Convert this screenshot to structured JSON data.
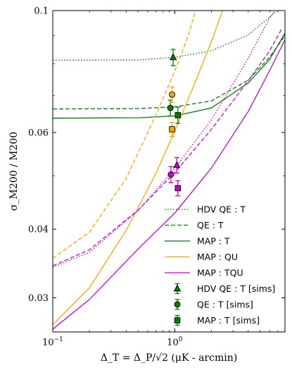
{
  "chart_data": {
    "type": "line",
    "xlabel": "Δ_T = Δ_P/√2 (μK - arcmin)",
    "ylabel": "σ_M200 / M200",
    "x_scale": "log",
    "y_scale": "log",
    "xlim": [
      0.1,
      8
    ],
    "ylim": [
      0.026,
      0.1
    ],
    "x_ticks": [
      {
        "value": 0.1,
        "label": "10^-1"
      },
      {
        "value": 1,
        "label": "10^0"
      }
    ],
    "y_ticks": [
      {
        "value": 0.03,
        "label": "0.03"
      },
      {
        "value": 0.04,
        "label": "0.04"
      },
      {
        "value": 0.06,
        "label": "0.06"
      },
      {
        "value": 0.1,
        "label": "0.1"
      }
    ],
    "legend_position": "bottom-right",
    "series": [
      {
        "name": "HDV QE : T",
        "style": "dotted",
        "color": "#008000",
        "points": [
          [
            0.1,
            0.0812
          ],
          [
            0.5,
            0.0813
          ],
          [
            1.0,
            0.0822
          ],
          [
            2.0,
            0.0845
          ],
          [
            4.0,
            0.0903
          ],
          [
            6.0,
            0.0973
          ],
          [
            7.2,
            0.101
          ]
        ]
      },
      {
        "name": "QE : T",
        "style": "dashed",
        "color": "#008000",
        "points": [
          [
            0.1,
            0.0662
          ],
          [
            0.5,
            0.0663
          ],
          [
            1.0,
            0.0668
          ],
          [
            2.0,
            0.0685
          ],
          [
            4.0,
            0.0747
          ],
          [
            6.0,
            0.0823
          ],
          [
            8.0,
            0.09
          ]
        ]
      },
      {
        "name": "MAP : T",
        "style": "solid",
        "color": "#008000",
        "points": [
          [
            0.1,
            0.0637
          ],
          [
            0.5,
            0.0638
          ],
          [
            1.0,
            0.0643
          ],
          [
            2.0,
            0.0665
          ],
          [
            4.0,
            0.0738
          ],
          [
            6.0,
            0.0815
          ],
          [
            8.0,
            0.091
          ]
        ]
      },
      {
        "name": "MAP : QU",
        "style": "solid",
        "color": "#ffa500",
        "points": [
          [
            0.1,
            0.0268
          ],
          [
            0.2,
            0.0313
          ],
          [
            0.4,
            0.0398
          ],
          [
            0.7,
            0.0505
          ],
          [
            1.0,
            0.0603
          ],
          [
            1.5,
            0.0748
          ],
          [
            2.0,
            0.0878
          ],
          [
            2.5,
            0.101
          ]
        ]
      },
      {
        "name": "MAP : TQU",
        "style": "solid",
        "color": "#cc00cc",
        "points": [
          [
            0.1,
            0.0263
          ],
          [
            0.2,
            0.0298
          ],
          [
            0.5,
            0.0368
          ],
          [
            1.0,
            0.0428
          ],
          [
            2.0,
            0.0517
          ],
          [
            4.0,
            0.0655
          ],
          [
            6.0,
            0.0778
          ],
          [
            8.0,
            0.0885
          ]
        ]
      },
      {
        "name": "",
        "style": "dashed",
        "color": "#ffa500",
        "points": [
          [
            0.1,
            0.0354
          ],
          [
            0.2,
            0.0395
          ],
          [
            0.4,
            0.0495
          ],
          [
            0.7,
            0.0645
          ],
          [
            1.0,
            0.0776
          ],
          [
            1.3,
            0.0905
          ],
          [
            1.5,
            0.101
          ]
        ]
      },
      {
        "name": "",
        "style": "dashed",
        "color": "#cc00cc",
        "points": [
          [
            0.1,
            0.0343
          ],
          [
            0.2,
            0.0367
          ],
          [
            0.5,
            0.0433
          ],
          [
            1.0,
            0.0507
          ],
          [
            2.0,
            0.0608
          ],
          [
            4.0,
            0.0745
          ],
          [
            6.0,
            0.0845
          ],
          [
            7.5,
            0.0925
          ]
        ]
      },
      {
        "name": "",
        "style": "dotted",
        "color": "#cc00cc",
        "points": [
          [
            0.1,
            0.0341
          ],
          [
            0.2,
            0.0363
          ],
          [
            0.5,
            0.0432
          ],
          [
            1.0,
            0.0516
          ],
          [
            2.0,
            0.0633
          ],
          [
            4.0,
            0.0818
          ],
          [
            6.0,
            0.097
          ],
          [
            6.8,
            0.101
          ]
        ]
      }
    ],
    "markers": [
      {
        "name": "HDV QE : T [sims]",
        "shape": "triangle",
        "x": 0.97,
        "y": 0.0822,
        "err": 0.0028,
        "color": "#008000"
      },
      {
        "name": "QE : T [sims]",
        "shape": "circle",
        "x": 0.92,
        "y": 0.0665,
        "err": 0.0022,
        "color": "#008000"
      },
      {
        "name": "MAP : T [sims]",
        "shape": "square",
        "x": 1.06,
        "y": 0.0645,
        "err": 0.0022,
        "color": "#008000"
      },
      {
        "name": "",
        "shape": "circle",
        "x": 0.95,
        "y": 0.0703,
        "err": 0.0023,
        "color": "#ffa500"
      },
      {
        "name": "",
        "shape": "square",
        "x": 0.95,
        "y": 0.0608,
        "err": 0.0018,
        "color": "#ffa500"
      },
      {
        "name": "",
        "shape": "triangle",
        "x": 1.04,
        "y": 0.0523,
        "err": 0.0017,
        "color": "#cc00cc"
      },
      {
        "name": "",
        "shape": "circle",
        "x": 0.93,
        "y": 0.0503,
        "err": 0.0017,
        "color": "#cc00cc"
      },
      {
        "name": "",
        "shape": "square",
        "x": 1.06,
        "y": 0.0475,
        "err": 0.0015,
        "color": "#cc00cc"
      }
    ]
  }
}
